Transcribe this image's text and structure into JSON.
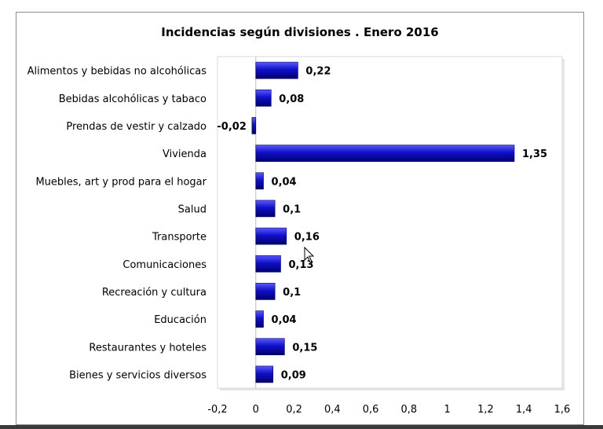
{
  "chart_data": {
    "type": "bar",
    "orientation": "horizontal",
    "title": "Incidencias según divisiones . Enero 2016",
    "xlabel": "",
    "ylabel": "",
    "categories": [
      "Alimentos y bebidas no alcohólicas",
      "Bebidas alcohólicas y tabaco",
      "Prendas de vestir y calzado",
      "Vivienda",
      "Muebles, art y prod para el hogar",
      "Salud",
      "Transporte",
      "Comunicaciones",
      "Recreación y cultura",
      "Educación",
      "Restaurantes y hoteles",
      "Bienes y servicios diversos"
    ],
    "values": [
      0.22,
      0.08,
      -0.02,
      1.35,
      0.04,
      0.1,
      0.16,
      0.13,
      0.1,
      0.04,
      0.15,
      0.09
    ],
    "value_labels": [
      "0,22",
      "0,08",
      "-0,02",
      "1,35",
      "0,04",
      "0,1",
      "0,16",
      "0,13",
      "0,1",
      "0,04",
      "0,15",
      "0,09"
    ],
    "xlim": [
      -0.2,
      1.6
    ],
    "xticks": [
      -0.2,
      0,
      0.2,
      0.4,
      0.6,
      0.8,
      1,
      1.2,
      1.4,
      1.6
    ],
    "xtick_labels": [
      "-0,2",
      "0",
      "0,2",
      "0,4",
      "0,6",
      "0,8",
      "1",
      "1,2",
      "1,4",
      "1,6"
    ],
    "grid": false,
    "legend": "none",
    "bar_color": "#1010c8"
  }
}
